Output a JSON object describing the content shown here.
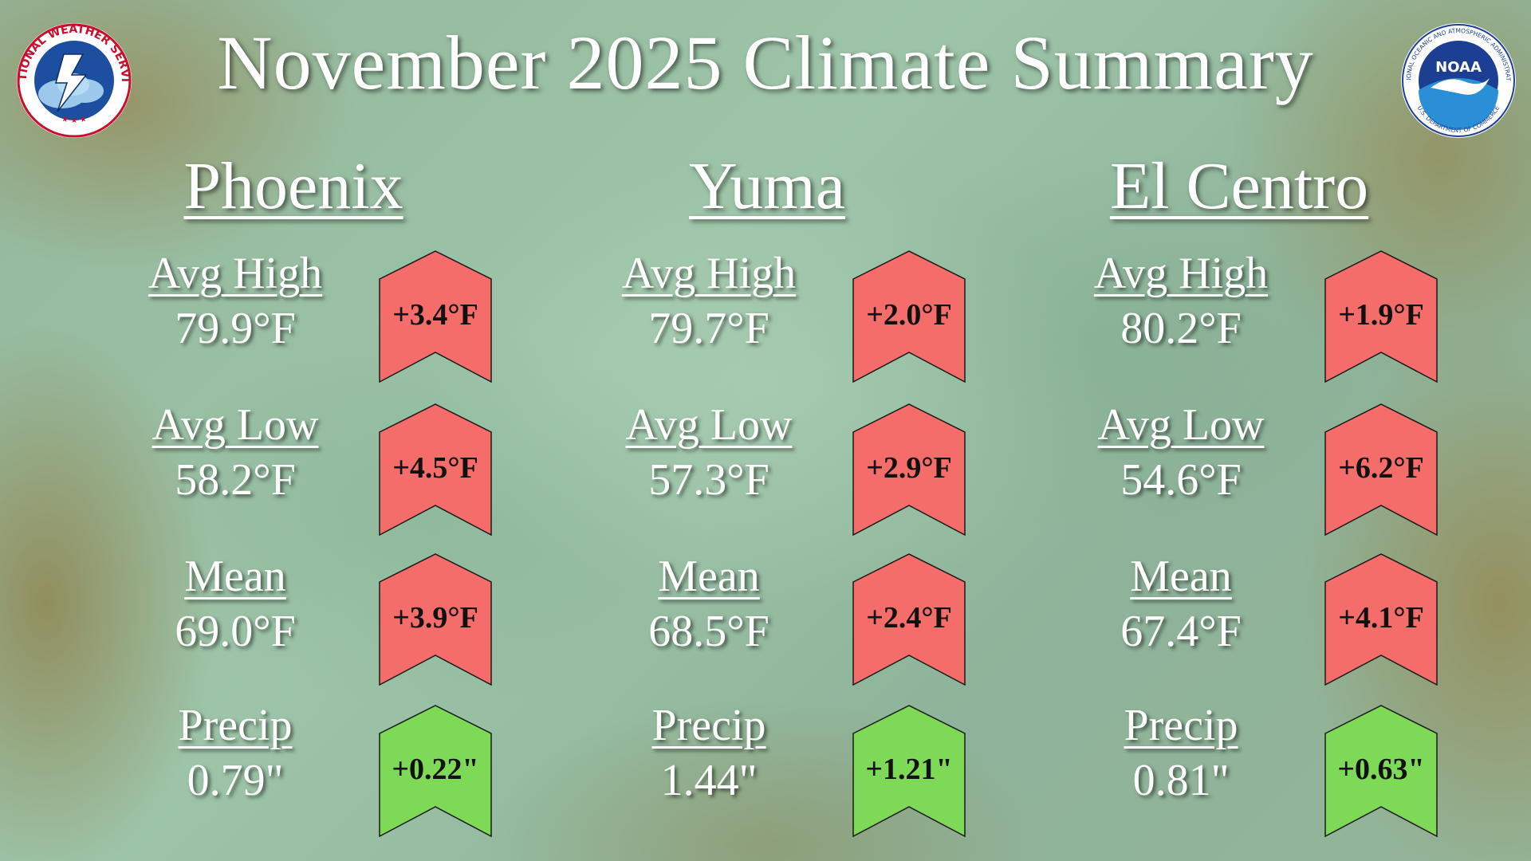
{
  "title": "November 2025 Climate Summary",
  "logos": {
    "nws": {
      "text": "NATIONAL WEATHER SERVICE"
    },
    "noaa": {
      "text": "NOAA",
      "ring_text": "NATIONAL OCEANIC AND ATMOSPHERIC ADMINISTRATION",
      "bottom_text": "U.S. DEPARTMENT OF COMMERCE"
    }
  },
  "colors": {
    "above_normal": "#f46d6a",
    "precip_above": "#7ed957",
    "badge_border": "#1a1a1a"
  },
  "cities": [
    {
      "name": "Phoenix",
      "stats": [
        {
          "label": "Avg High",
          "value": "79.9°F",
          "departure": "+3.4°F",
          "kind": "temp"
        },
        {
          "label": "Avg Low",
          "value": "58.2°F",
          "departure": "+4.5°F",
          "kind": "temp"
        },
        {
          "label": "Mean",
          "value": "69.0°F",
          "departure": "+3.9°F",
          "kind": "temp"
        },
        {
          "label": "Precip",
          "value": "0.79\"",
          "departure": "+0.22\"",
          "kind": "precip"
        }
      ]
    },
    {
      "name": "Yuma",
      "stats": [
        {
          "label": "Avg High",
          "value": "79.7°F",
          "departure": "+2.0°F",
          "kind": "temp"
        },
        {
          "label": "Avg Low",
          "value": "57.3°F",
          "departure": "+2.9°F",
          "kind": "temp"
        },
        {
          "label": "Mean",
          "value": "68.5°F",
          "departure": "+2.4°F",
          "kind": "temp"
        },
        {
          "label": "Precip",
          "value": "1.44\"",
          "departure": "+1.21\"",
          "kind": "precip"
        }
      ]
    },
    {
      "name": "El Centro",
      "stats": [
        {
          "label": "Avg High",
          "value": "80.2°F",
          "departure": "+1.9°F",
          "kind": "temp"
        },
        {
          "label": "Avg Low",
          "value": "54.6°F",
          "departure": "+6.2°F",
          "kind": "temp"
        },
        {
          "label": "Mean",
          "value": "67.4°F",
          "departure": "+4.1°F",
          "kind": "temp"
        },
        {
          "label": "Precip",
          "value": "0.81\"",
          "departure": "+0.63\"",
          "kind": "precip"
        }
      ]
    }
  ]
}
